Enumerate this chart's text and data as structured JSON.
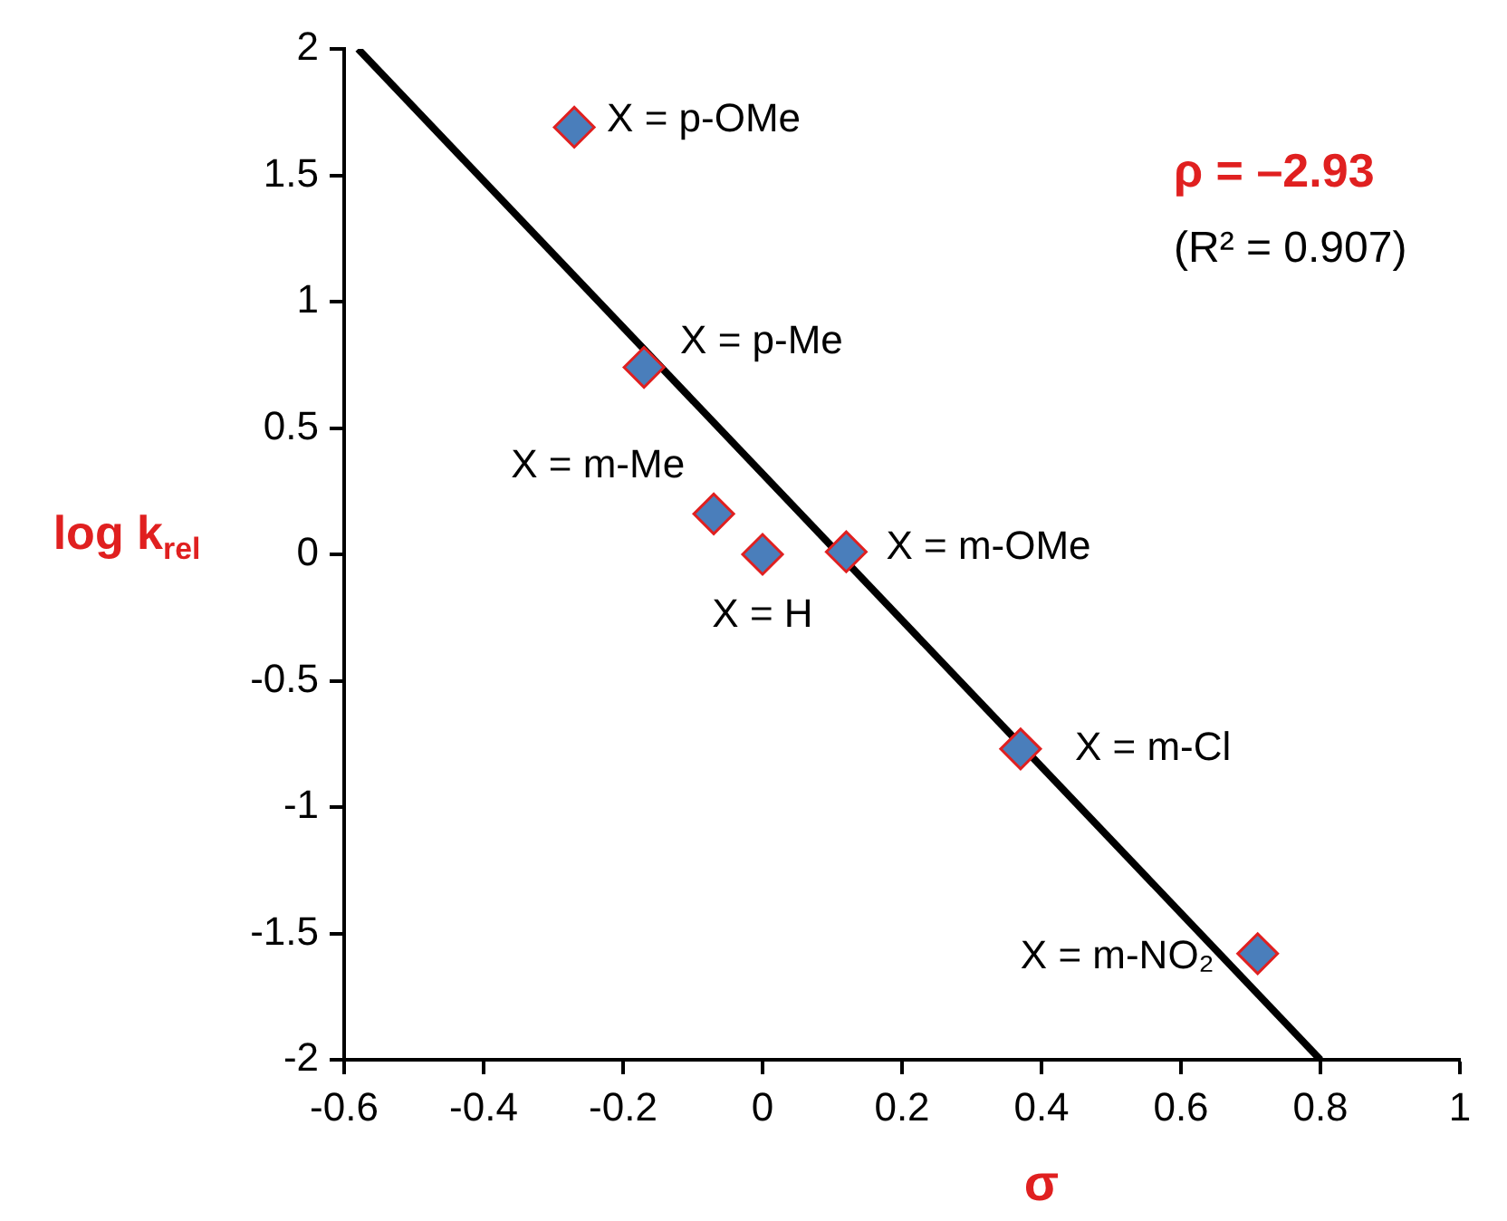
{
  "chart_data": {
    "type": "scatter",
    "xlabel": "σ",
    "ylabel": "log k$_{rel}$",
    "xlim": [
      -0.6,
      1
    ],
    "xticks": [
      -0.6,
      -0.4,
      -0.2,
      0,
      0.2,
      0.4,
      0.6,
      0.8,
      1
    ],
    "ylim": [
      -2,
      2
    ],
    "yticks": [
      -2,
      -1.5,
      -1,
      -0.5,
      0,
      0.5,
      1,
      1.5,
      2
    ],
    "marker": "diamond",
    "legend": false,
    "series": [
      {
        "type": "scatter",
        "color": "#4a7ebb",
        "x": [
          -0.27,
          -0.17,
          -0.07,
          0,
          0.12,
          0.37,
          0.71
        ],
        "values": [
          1.69,
          0.74,
          0.16,
          0,
          0.01,
          -0.77,
          -1.58
        ]
      },
      {
        "type": "line",
        "color": "#000000",
        "x": [
          -0.58,
          0.8
        ],
        "values": [
          2,
          -2
        ],
        "marker": "none"
      }
    ],
    "annotations": [
      {
        "text": "X = p-OMe",
        "x": -0.27,
        "y": 1.69
      },
      {
        "text": "X = p-Me",
        "x": -0.17,
        "y": 0.74
      },
      {
        "text": "X = m-Me",
        "x": -0.07,
        "y": 0.16
      },
      {
        "text": "X = H",
        "x": 0,
        "y": 0
      },
      {
        "text": "X = m-OMe",
        "x": 0.12,
        "y": 0.01
      },
      {
        "text": "X = m-Cl",
        "x": 0.37,
        "y": -0.77
      },
      {
        "text": "X = m-NO₂",
        "x": 0.71,
        "y": -1.58
      },
      "ρ = –2.93",
      "(R² = 0.907)"
    ]
  }
}
